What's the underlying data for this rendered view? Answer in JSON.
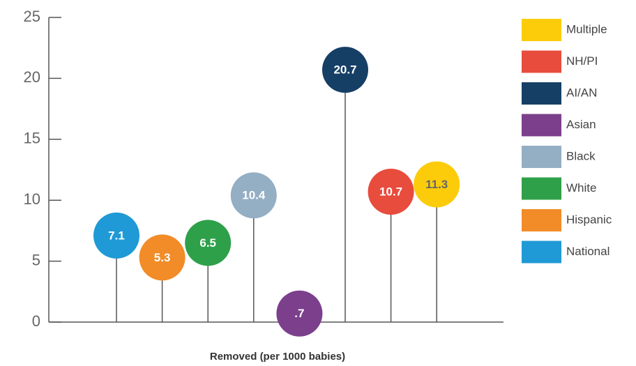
{
  "chart_data": {
    "type": "lollipop",
    "xlabel": "Removed (per 1000 babies)",
    "categories": [
      "National",
      "Hispanic",
      "White",
      "Black",
      "Asian",
      "AI/AN",
      "NH/PI",
      "Multiple"
    ],
    "values": [
      7.1,
      5.3,
      6.5,
      10.4,
      0.7,
      20.7,
      10.7,
      11.3
    ],
    "value_labels": [
      "7.1",
      "5.3",
      "6.5",
      "10.4",
      ".7",
      "20.7",
      "10.7",
      "11.3"
    ],
    "colors": [
      "#1f9ad6",
      "#f28c28",
      "#2ea04a",
      "#94aec4",
      "#7b3f8c",
      "#163f66",
      "#e84c3d",
      "#fccc0a"
    ],
    "ylim": [
      0,
      25
    ],
    "yticks": [
      0,
      5,
      10,
      15,
      20,
      25
    ]
  }
}
